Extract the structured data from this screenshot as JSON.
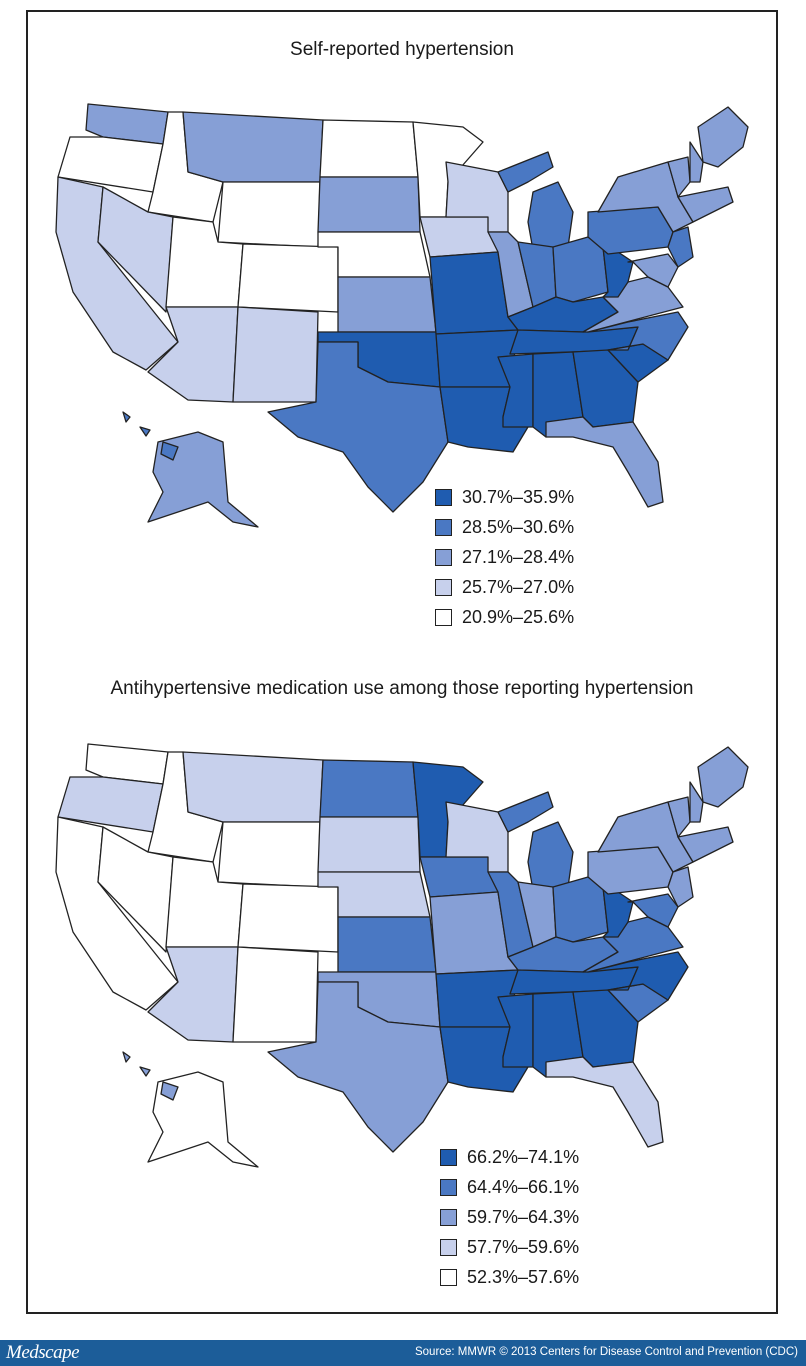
{
  "colors": {
    "c1": "#1f5cb0",
    "c2": "#4a78c3",
    "c3": "#869fd6",
    "c4": "#c7d0ec",
    "c5": "#ffffff",
    "border": "#222222",
    "footer_bg": "#1c5d99"
  },
  "chart_data": [
    {
      "type": "choropleth",
      "title": "Self-reported hypertension",
      "legend": [
        {
          "label": "30.7%–35.9%",
          "class": "c1"
        },
        {
          "label": "28.5%–30.6%",
          "class": "c2"
        },
        {
          "label": "27.1%–28.4%",
          "class": "c3"
        },
        {
          "label": "25.7%–27.0%",
          "class": "c4"
        },
        {
          "label": "20.9%–25.6%",
          "class": "c5"
        }
      ],
      "states": {
        "WA": "c3",
        "OR": "c5",
        "CA": "c4",
        "ID": "c5",
        "NV": "c4",
        "MT": "c3",
        "WY": "c5",
        "UT": "c5",
        "AZ": "c4",
        "CO": "c5",
        "NM": "c4",
        "ND": "c5",
        "SD": "c3",
        "NE": "c5",
        "KS": "c3",
        "OK": "c1",
        "TX": "c2",
        "MN": "c5",
        "IA": "c4",
        "MO": "c1",
        "AR": "c1",
        "LA": "c1",
        "WI": "c4",
        "IL": "c3",
        "MI": "c2",
        "IN": "c2",
        "OH": "c2",
        "KY": "c1",
        "TN": "c1",
        "MS": "c1",
        "AL": "c1",
        "GA": "c1",
        "FL": "c3",
        "SC": "c1",
        "NC": "c2",
        "VA": "c3",
        "WV": "c1",
        "PA": "c2",
        "NY": "c3",
        "ME": "c3",
        "AK": "c3",
        "HI": "c2"
      }
    },
    {
      "type": "choropleth",
      "title": "Antihypertensive medication use among those reporting hypertension",
      "legend": [
        {
          "label": "66.2%–74.1%",
          "class": "c1"
        },
        {
          "label": "64.4%–66.1%",
          "class": "c2"
        },
        {
          "label": "59.7%–64.3%",
          "class": "c3"
        },
        {
          "label": "57.7%–59.6%",
          "class": "c4"
        },
        {
          "label": "52.3%–57.6%",
          "class": "c5"
        }
      ],
      "states": {
        "WA": "c5",
        "OR": "c4",
        "CA": "c5",
        "ID": "c5",
        "NV": "c5",
        "MT": "c4",
        "WY": "c5",
        "UT": "c5",
        "AZ": "c4",
        "CO": "c5",
        "NM": "c5",
        "ND": "c2",
        "SD": "c4",
        "NE": "c4",
        "KS": "c2",
        "OK": "c3",
        "TX": "c3",
        "MN": "c1",
        "IA": "c2",
        "MO": "c3",
        "AR": "c1",
        "LA": "c1",
        "WI": "c4",
        "IL": "c2",
        "MI": "c2",
        "IN": "c3",
        "OH": "c2",
        "KY": "c2",
        "TN": "c1",
        "MS": "c1",
        "AL": "c1",
        "GA": "c1",
        "FL": "c4",
        "SC": "c2",
        "NC": "c1",
        "VA": "c2",
        "WV": "c1",
        "PA": "c3",
        "NY": "c3",
        "ME": "c3",
        "AK": "c5",
        "HI": "c3"
      }
    }
  ],
  "footer": {
    "brand": "Medscape",
    "source": "Source: MMWR © 2013 Centers for Disease Control and Prevention (CDC)"
  }
}
